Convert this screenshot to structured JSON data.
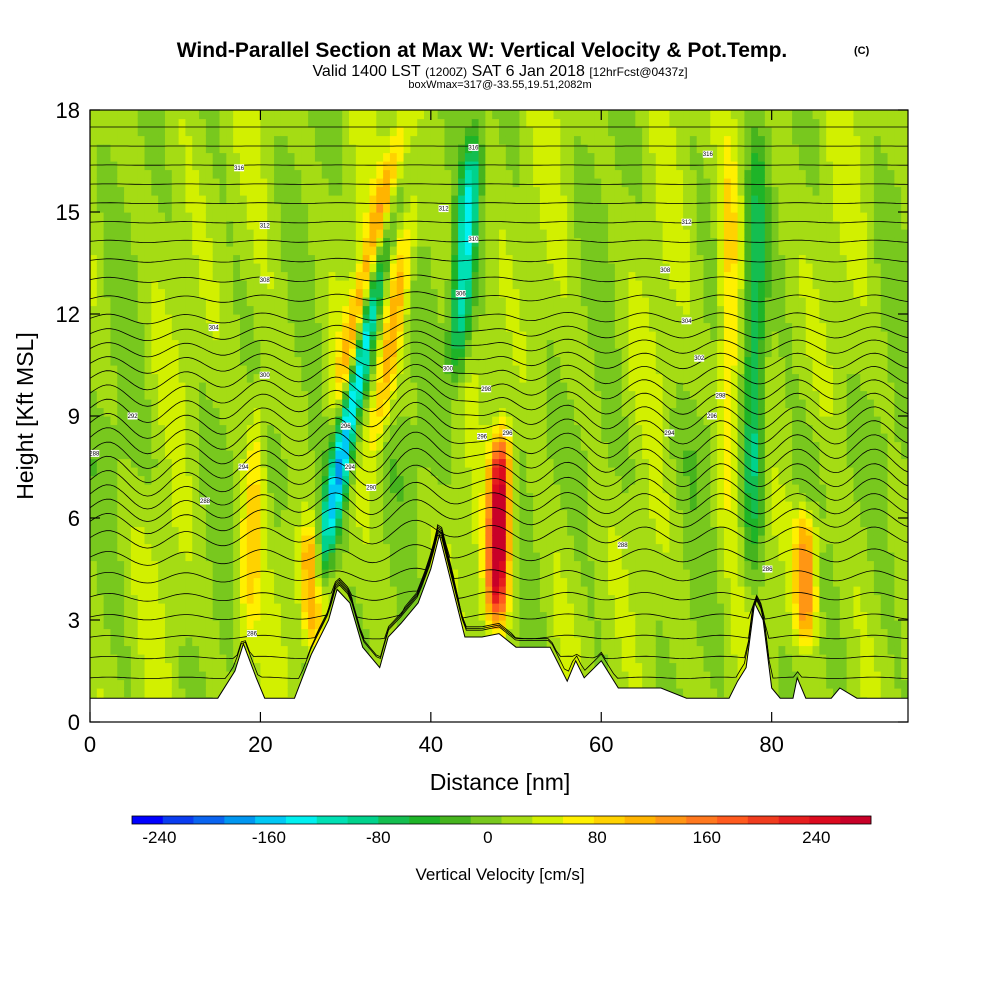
{
  "chart_data": {
    "type": "heatmap",
    "title": "Wind-Parallel Section at Max W: Vertical Velocity & Pot.Temp.",
    "copyright": "(C)",
    "subtitle": {
      "valid_prefix": "Valid 1400 LST",
      "utc": "(1200Z)",
      "date": "SAT 6 Jan 2018",
      "forecast": "[12hrFcst@0437z]"
    },
    "box_note": "boxWmax=317@-33.55,19.51,2082m",
    "xlabel": "Distance [nm]",
    "ylabel": "Height [Kft MSL]",
    "xlim": [
      0,
      96
    ],
    "ylim": [
      0,
      18
    ],
    "x_ticks": [
      "0",
      "20",
      "40",
      "60",
      "80"
    ],
    "y_ticks": [
      "0",
      "3",
      "6",
      "9",
      "12",
      "15",
      "18"
    ],
    "colorbar": {
      "label": "Vertical Velocity [cm/s]",
      "ticks": [
        "-240",
        "-160",
        "-80",
        "0",
        "80",
        "160",
        "240"
      ],
      "range": [
        -260,
        280
      ],
      "colors": [
        "#0000ff",
        "#0a3cf0",
        "#0a64f0",
        "#0096f0",
        "#00c8f5",
        "#00f0f0",
        "#00e0b4",
        "#00d28c",
        "#14be50",
        "#1eb428",
        "#46b41e",
        "#78c81e",
        "#a5dc14",
        "#d2f000",
        "#fff000",
        "#ffd200",
        "#ffb400",
        "#ff9614",
        "#ff781e",
        "#ff5a1e",
        "#f03c1e",
        "#e61e1e",
        "#dc0a1e",
        "#c80028"
      ]
    },
    "velocity_features": [
      {
        "x": 31,
        "z_bottom": 3.0,
        "z_top": 16.5,
        "w": -200,
        "tilt": 0.75
      },
      {
        "x": 33,
        "z_bottom": 9.0,
        "z_top": 18.0,
        "w": 150,
        "tilt": 0.9
      },
      {
        "x": 35.5,
        "z_bottom": 7.0,
        "z_top": 16.0,
        "w": 90,
        "tilt": 0.6
      },
      {
        "x": 44,
        "z_bottom": 9.5,
        "z_top": 18.0,
        "w": -150,
        "tilt": 0.3
      },
      {
        "x": 48,
        "z_bottom": 2.5,
        "z_top": 9.0,
        "w": 280,
        "tilt": 0.1
      },
      {
        "x": 19,
        "z_bottom": 1.5,
        "z_top": 10.0,
        "w": 70,
        "tilt": 0.2
      },
      {
        "x": 26,
        "z_bottom": 2.0,
        "z_top": 6.0,
        "w": 130,
        "tilt": 0.0
      },
      {
        "x": 78,
        "z_bottom": 3.0,
        "z_top": 18.0,
        "w": -100,
        "tilt": 0.05
      },
      {
        "x": 84,
        "z_bottom": 2.0,
        "z_top": 6.5,
        "w": 130,
        "tilt": 0.0
      },
      {
        "x": 75,
        "z_bottom": 5.0,
        "z_top": 18.0,
        "w": 70,
        "tilt": 0.0
      }
    ],
    "terrain": [
      [
        0,
        0.7
      ],
      [
        15,
        0.7
      ],
      [
        17,
        1.5
      ],
      [
        18,
        2.3
      ],
      [
        19.5,
        1.3
      ],
      [
        20.5,
        0.7
      ],
      [
        24,
        0.7
      ],
      [
        26,
        2.0
      ],
      [
        28,
        3.0
      ],
      [
        29,
        3.9
      ],
      [
        30.5,
        3.5
      ],
      [
        32,
        2.2
      ],
      [
        34,
        1.6
      ],
      [
        35,
        2.5
      ],
      [
        36.5,
        2.9
      ],
      [
        38.5,
        3.5
      ],
      [
        40,
        4.5
      ],
      [
        41,
        5.5
      ],
      [
        42.5,
        4.0
      ],
      [
        44,
        2.5
      ],
      [
        46,
        2.5
      ],
      [
        48,
        2.6
      ],
      [
        50,
        2.2
      ],
      [
        54,
        2.2
      ],
      [
        56,
        1.2
      ],
      [
        57,
        1.8
      ],
      [
        58,
        1.3
      ],
      [
        60,
        1.8
      ],
      [
        62,
        1.0
      ],
      [
        67,
        1.0
      ],
      [
        70,
        0.7
      ],
      [
        75,
        0.7
      ],
      [
        76,
        1.2
      ],
      [
        77,
        1.6
      ],
      [
        78,
        3.5
      ],
      [
        79,
        3.0
      ],
      [
        80,
        1.0
      ],
      [
        81,
        0.7
      ],
      [
        82.5,
        0.7
      ],
      [
        83,
        1.3
      ],
      [
        84,
        0.7
      ],
      [
        87,
        0.7
      ],
      [
        88,
        1.0
      ],
      [
        90,
        0.7
      ],
      [
        96,
        0.7
      ]
    ],
    "potential_temperature": {
      "levels_k": [
        286,
        287,
        288,
        289,
        290,
        291,
        292,
        293,
        294,
        295,
        296,
        297,
        298,
        299,
        300,
        301,
        302,
        303,
        304,
        305,
        306,
        307,
        308,
        309,
        310,
        311,
        312,
        313,
        314,
        315,
        316,
        317,
        318
      ],
      "contour_labels": [
        {
          "x": 0.5,
          "z": 7.9,
          "text": "288"
        },
        {
          "x": 5,
          "z": 9.0,
          "text": "292"
        },
        {
          "x": 13.5,
          "z": 6.5,
          "text": "288"
        },
        {
          "x": 17.5,
          "z": 16.3,
          "text": "316"
        },
        {
          "x": 20.5,
          "z": 14.6,
          "text": "312"
        },
        {
          "x": 20.5,
          "z": 13.0,
          "text": "308"
        },
        {
          "x": 14.5,
          "z": 11.6,
          "text": "304"
        },
        {
          "x": 20.5,
          "z": 10.2,
          "text": "300"
        },
        {
          "x": 18,
          "z": 7.5,
          "text": "294"
        },
        {
          "x": 19,
          "z": 2.6,
          "text": "286"
        },
        {
          "x": 30,
          "z": 8.7,
          "text": "296"
        },
        {
          "x": 30.5,
          "z": 7.5,
          "text": "294"
        },
        {
          "x": 33,
          "z": 6.9,
          "text": "290"
        },
        {
          "x": 41.5,
          "z": 15.1,
          "text": "312"
        },
        {
          "x": 45,
          "z": 16.9,
          "text": "316"
        },
        {
          "x": 45,
          "z": 14.2,
          "text": "310"
        },
        {
          "x": 43.5,
          "z": 12.6,
          "text": "306"
        },
        {
          "x": 42,
          "z": 10.4,
          "text": "300"
        },
        {
          "x": 46.5,
          "z": 9.8,
          "text": "298"
        },
        {
          "x": 46,
          "z": 8.4,
          "text": "296"
        },
        {
          "x": 49,
          "z": 8.5,
          "text": "296"
        },
        {
          "x": 62.5,
          "z": 5.2,
          "text": "288"
        },
        {
          "x": 72.5,
          "z": 16.7,
          "text": "316"
        },
        {
          "x": 70,
          "z": 14.7,
          "text": "312"
        },
        {
          "x": 67.5,
          "z": 13.3,
          "text": "308"
        },
        {
          "x": 70,
          "z": 11.8,
          "text": "304"
        },
        {
          "x": 71.5,
          "z": 10.7,
          "text": "302"
        },
        {
          "x": 74,
          "z": 9.6,
          "text": "298"
        },
        {
          "x": 73,
          "z": 9.0,
          "text": "296"
        },
        {
          "x": 68,
          "z": 8.5,
          "text": "294"
        },
        {
          "x": 79.5,
          "z": 4.5,
          "text": "286"
        }
      ]
    }
  }
}
